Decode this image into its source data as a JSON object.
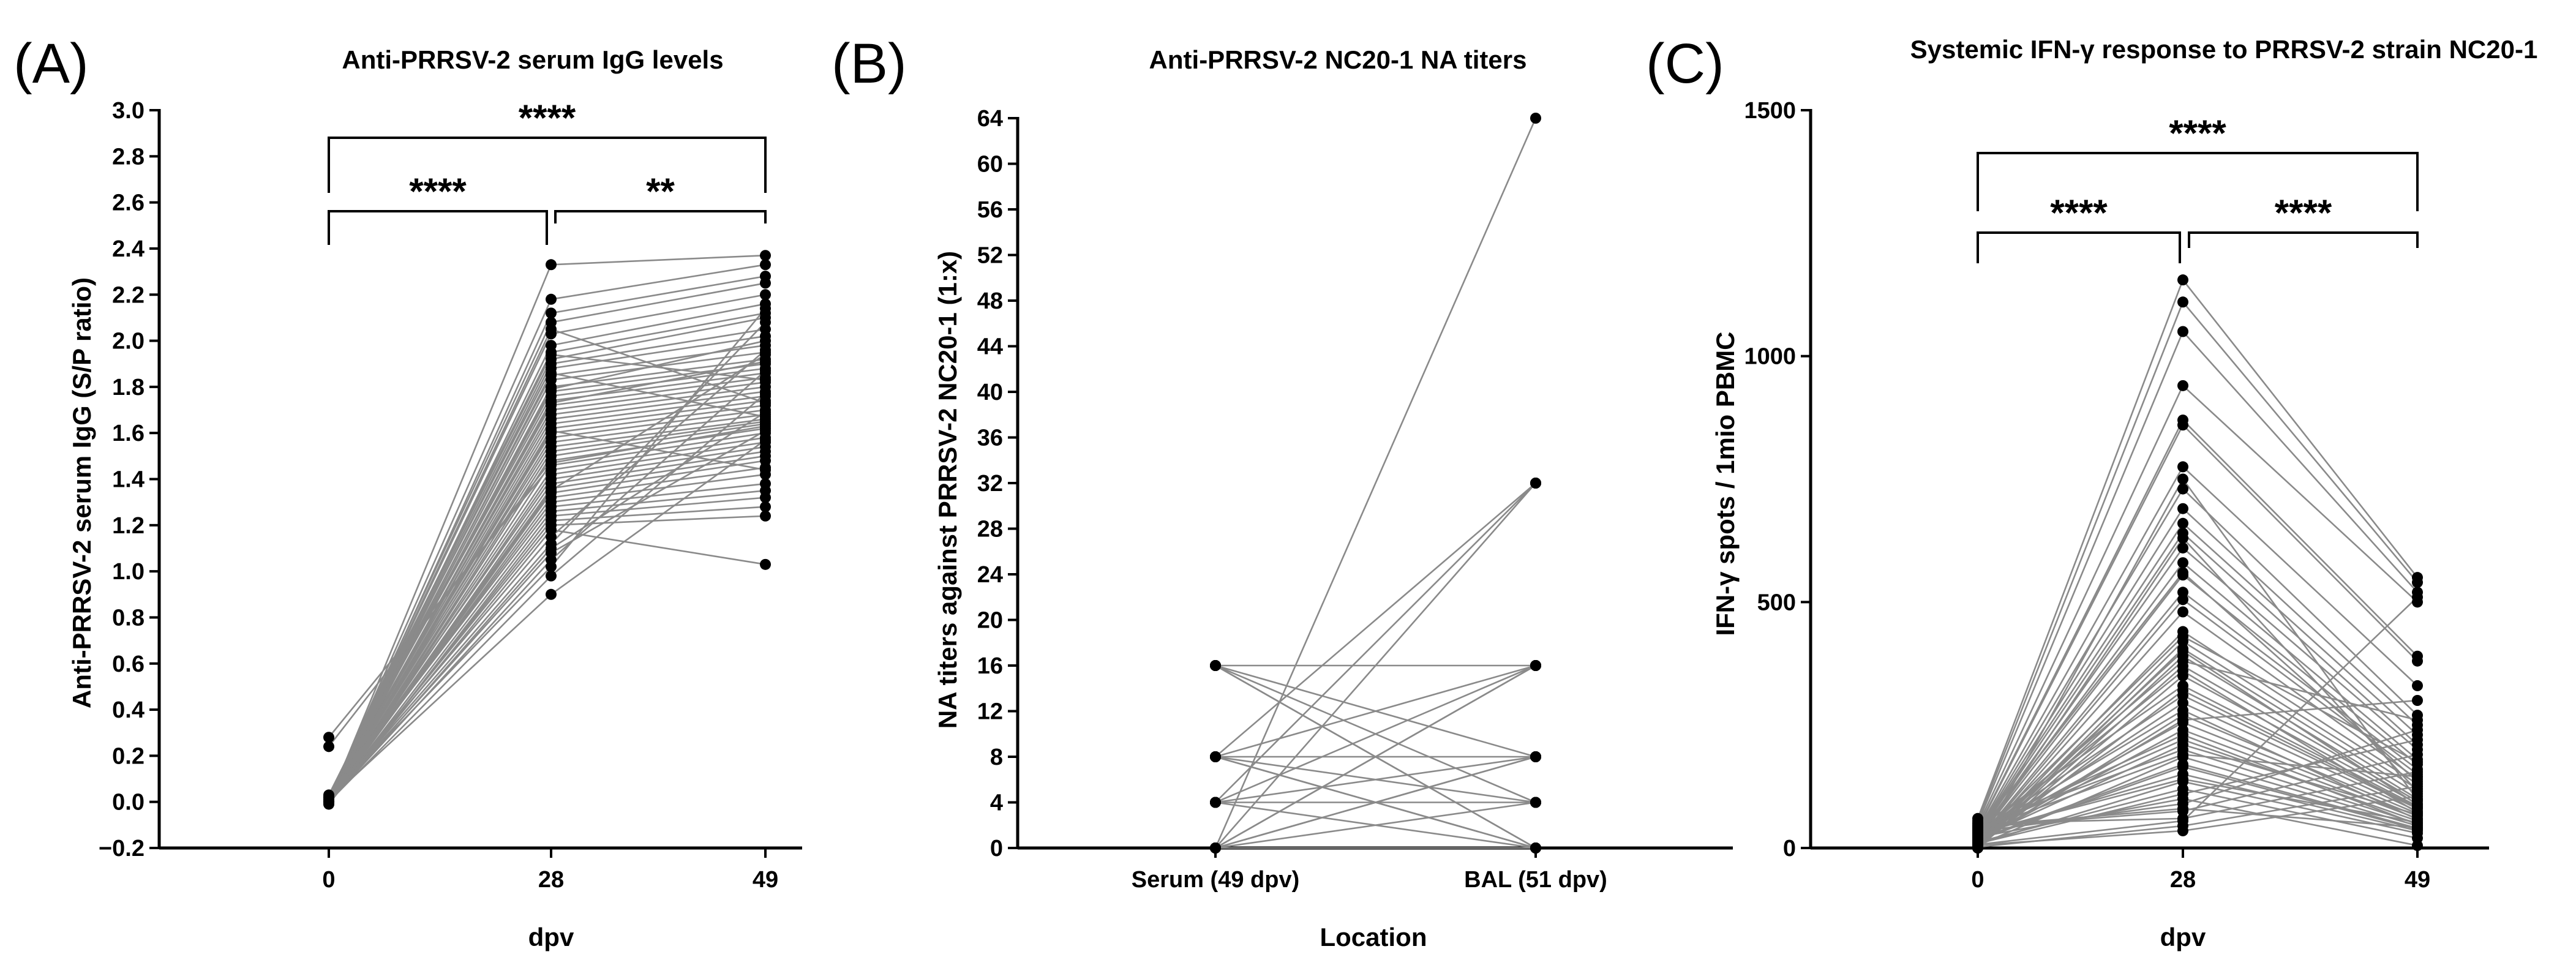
{
  "chart_data": [
    {
      "panel": "(A)",
      "type": "line",
      "title": "Anti-PRRSV-2 serum IgG levels",
      "xlabel": "dpv",
      "ylabel": "Anti-PRRSV-2 serum IgG (S/P ratio)",
      "categories": [
        "0",
        "28",
        "49"
      ],
      "ylim": [
        -0.2,
        3.0
      ],
      "yticks": [
        -0.2,
        0.0,
        0.2,
        0.4,
        0.6,
        0.8,
        1.0,
        1.2,
        1.4,
        1.6,
        1.8,
        2.0,
        2.2,
        2.4,
        2.6,
        2.8,
        3.0
      ],
      "ytick_labels": [
        "−0.2",
        "0.0",
        "0.2",
        "0.4",
        "0.6",
        "0.8",
        "1.0",
        "1.2",
        "1.4",
        "1.6",
        "1.8",
        "2.0",
        "2.2",
        "2.4",
        "2.6",
        "2.8",
        "3.0"
      ],
      "values_day0": [
        0.0,
        0.01,
        0.0,
        0.02,
        0.01,
        0.0,
        0.03,
        0.01,
        0.0,
        0.02,
        0.01,
        0.0,
        0.0,
        0.01,
        0.02,
        0.0,
        0.01,
        0.0,
        0.02,
        0.01,
        0.0,
        0.0,
        0.01,
        0.0,
        0.02,
        0.01,
        0.0,
        0.0,
        0.24,
        0.28,
        0.01,
        0.0,
        0.02,
        0.0,
        0.01,
        0.0,
        0.0,
        0.01,
        0.02,
        0.0,
        -0.01,
        0.0,
        0.01,
        0.0,
        0.02,
        0.01,
        0.0,
        0.01,
        0.0,
        0.02,
        0.0,
        0.01,
        0.0,
        0.0,
        0.01,
        0.0,
        0.02,
        0.01,
        0.0,
        0.0
      ],
      "values_day28": [
        2.33,
        2.18,
        2.12,
        2.08,
        2.03,
        1.98,
        1.95,
        1.92,
        1.9,
        1.88,
        1.85,
        1.83,
        1.8,
        1.78,
        1.76,
        1.74,
        1.72,
        1.7,
        1.68,
        1.66,
        1.64,
        1.62,
        1.6,
        1.58,
        1.56,
        1.54,
        1.52,
        1.5,
        1.48,
        1.46,
        1.44,
        1.42,
        1.4,
        1.38,
        1.36,
        1.34,
        1.32,
        1.3,
        1.28,
        1.26,
        1.24,
        1.22,
        1.2,
        1.18,
        1.15,
        1.12,
        1.1,
        1.08,
        1.05,
        1.02,
        0.98,
        0.9,
        1.61,
        1.73,
        1.79,
        1.86,
        1.94,
        2.05,
        1.47,
        1.35
      ],
      "values_day49": [
        2.37,
        2.33,
        2.28,
        2.25,
        2.2,
        2.16,
        2.12,
        2.1,
        2.05,
        2.02,
        1.98,
        1.95,
        1.92,
        1.9,
        1.88,
        1.86,
        1.84,
        1.82,
        1.8,
        1.78,
        1.76,
        1.74,
        1.72,
        1.7,
        1.68,
        1.66,
        1.65,
        1.64,
        1.62,
        1.6,
        1.58,
        1.56,
        1.54,
        1.52,
        1.5,
        1.48,
        1.45,
        1.42,
        1.38,
        1.35,
        1.32,
        1.28,
        1.24,
        1.03,
        1.96,
        2.08,
        1.69,
        1.61,
        1.87,
        2.14,
        1.77,
        1.57,
        1.44,
        1.91,
        2.0,
        1.67,
        1.83,
        1.73,
        1.63,
        1.94
      ],
      "significance": [
        {
          "from": "0",
          "to": "28",
          "label": "****"
        },
        {
          "from": "28",
          "to": "49",
          "label": "**"
        },
        {
          "from": "0",
          "to": "49",
          "label": "****"
        }
      ]
    },
    {
      "panel": "(B)",
      "type": "line",
      "title": "Anti-PRRSV-2 NC20-1 NA titers",
      "xlabel": "Location",
      "ylabel": "NA titers against PRRSV-2 NC20-1 (1:x)",
      "categories": [
        "Serum (49 dpv)",
        "BAL (51 dpv)"
      ],
      "ylim": [
        0,
        64
      ],
      "yticks": [
        0,
        4,
        8,
        12,
        16,
        20,
        24,
        28,
        32,
        36,
        40,
        44,
        48,
        52,
        56,
        60,
        64
      ],
      "pairs": [
        [
          16,
          4
        ],
        [
          16,
          8
        ],
        [
          16,
          0
        ],
        [
          16,
          16
        ],
        [
          8,
          16
        ],
        [
          8,
          4
        ],
        [
          8,
          0
        ],
        [
          8,
          8
        ],
        [
          4,
          32
        ],
        [
          4,
          0
        ],
        [
          4,
          8
        ],
        [
          4,
          16
        ],
        [
          0,
          64
        ],
        [
          0,
          32
        ],
        [
          0,
          16
        ],
        [
          0,
          8
        ],
        [
          0,
          4
        ],
        [
          0,
          0
        ],
        [
          8,
          32
        ],
        [
          0,
          16
        ],
        [
          4,
          4
        ],
        [
          16,
          0
        ],
        [
          8,
          0
        ],
        [
          0,
          8
        ]
      ]
    },
    {
      "panel": "(C)",
      "type": "line",
      "title": "Systemic IFN-γ response to PRRSV-2 strain NC20-1",
      "xlabel": "dpv",
      "ylabel": "IFN-γ spots / 1mio PBMC",
      "categories": [
        "0",
        "28",
        "49"
      ],
      "ylim": [
        0,
        1500
      ],
      "yticks": [
        0,
        500,
        1000,
        1500
      ],
      "values_day0": [
        60,
        55,
        50,
        45,
        40,
        38,
        35,
        32,
        30,
        28,
        25,
        22,
        20,
        18,
        15,
        12,
        10,
        8,
        5,
        3,
        2,
        0,
        0,
        40,
        30,
        20,
        10,
        25,
        15,
        35,
        45,
        5,
        18,
        28,
        8,
        12,
        22,
        33,
        42,
        50,
        2,
        6,
        14,
        24,
        30,
        38,
        16,
        9,
        20,
        27,
        11,
        0,
        4,
        19,
        31,
        44,
        7,
        13,
        26,
        36
      ],
      "values_day28": [
        1155,
        1110,
        1050,
        940,
        870,
        860,
        775,
        730,
        690,
        660,
        640,
        610,
        580,
        555,
        520,
        505,
        480,
        440,
        420,
        405,
        390,
        370,
        350,
        330,
        310,
        295,
        270,
        255,
        240,
        220,
        200,
        185,
        170,
        150,
        135,
        120,
        100,
        90,
        75,
        60,
        45,
        35,
        400,
        360,
        280,
        230,
        165,
        110,
        430,
        560,
        630,
        750,
        320,
        210,
        140,
        80,
        55,
        260,
        380,
        190
      ],
      "values_day49": [
        550,
        540,
        520,
        500,
        390,
        380,
        330,
        270,
        250,
        230,
        210,
        200,
        180,
        170,
        160,
        150,
        140,
        130,
        120,
        110,
        100,
        95,
        90,
        85,
        80,
        75,
        70,
        65,
        60,
        55,
        50,
        45,
        40,
        35,
        30,
        20,
        5,
        240,
        190,
        155,
        125,
        105,
        88,
        72,
        58,
        48,
        38,
        220,
        175,
        135,
        115,
        98,
        82,
        68,
        52,
        42,
        510,
        300,
        260,
        145
      ],
      "significance": [
        {
          "from": "0",
          "to": "28",
          "label": "****"
        },
        {
          "from": "28",
          "to": "49",
          "label": "****"
        },
        {
          "from": "0",
          "to": "49",
          "label": "****"
        }
      ]
    }
  ]
}
